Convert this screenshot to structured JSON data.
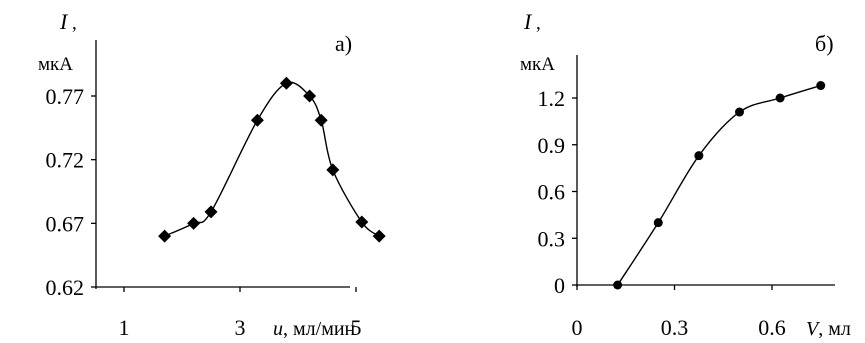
{
  "chart_data": [
    {
      "type": "scatter",
      "panel_label": "а)",
      "ylabel_symbol": "I",
      "ylabel_sep": ",",
      "ylabel_unit": "мкА",
      "xlabel_symbol": "u",
      "xlabel_unit": ", мл/мин",
      "xlim": [
        1,
        6
      ],
      "ylim": [
        0.62,
        0.8
      ],
      "xticks": [
        1,
        3,
        5
      ],
      "xtick_labels": [
        "1",
        "3",
        "5"
      ],
      "yticks": [
        0.62,
        0.67,
        0.72,
        0.77
      ],
      "ytick_labels": [
        "0.62",
        "0.67",
        "0.72",
        "0.77"
      ],
      "marker": "diamond",
      "smooth_line": true,
      "series": [
        {
          "x": [
            1.7,
            2.2,
            2.5,
            3.3,
            3.8,
            4.2,
            4.4,
            4.6,
            5.1,
            5.4
          ],
          "y": [
            0.66,
            0.67,
            0.679,
            0.751,
            0.78,
            0.77,
            0.751,
            0.712,
            0.671,
            0.66
          ]
        }
      ]
    },
    {
      "type": "line",
      "panel_label": "б)",
      "ylabel_symbol": "I",
      "ylabel_sep": ",",
      "ylabel_unit": "мкА",
      "xlabel_symbol": "V",
      "xlabel_unit": ", мл",
      "xlim": [
        0,
        0.8
      ],
      "ylim": [
        0,
        1.5
      ],
      "xticks": [
        0,
        0.3,
        0.6
      ],
      "xtick_labels": [
        "0",
        "0.3",
        "0.6"
      ],
      "yticks": [
        0,
        0.3,
        0.6,
        0.9,
        1.2
      ],
      "ytick_labels": [
        "0",
        "0.3",
        "0.6",
        "0.9",
        "1.2"
      ],
      "marker": "circle",
      "smooth_line": true,
      "series": [
        {
          "x": [
            0.125,
            0.25,
            0.375,
            0.5,
            0.625,
            0.75
          ],
          "y": [
            0.0,
            0.4,
            0.83,
            1.11,
            1.2,
            1.28
          ]
        }
      ]
    }
  ]
}
